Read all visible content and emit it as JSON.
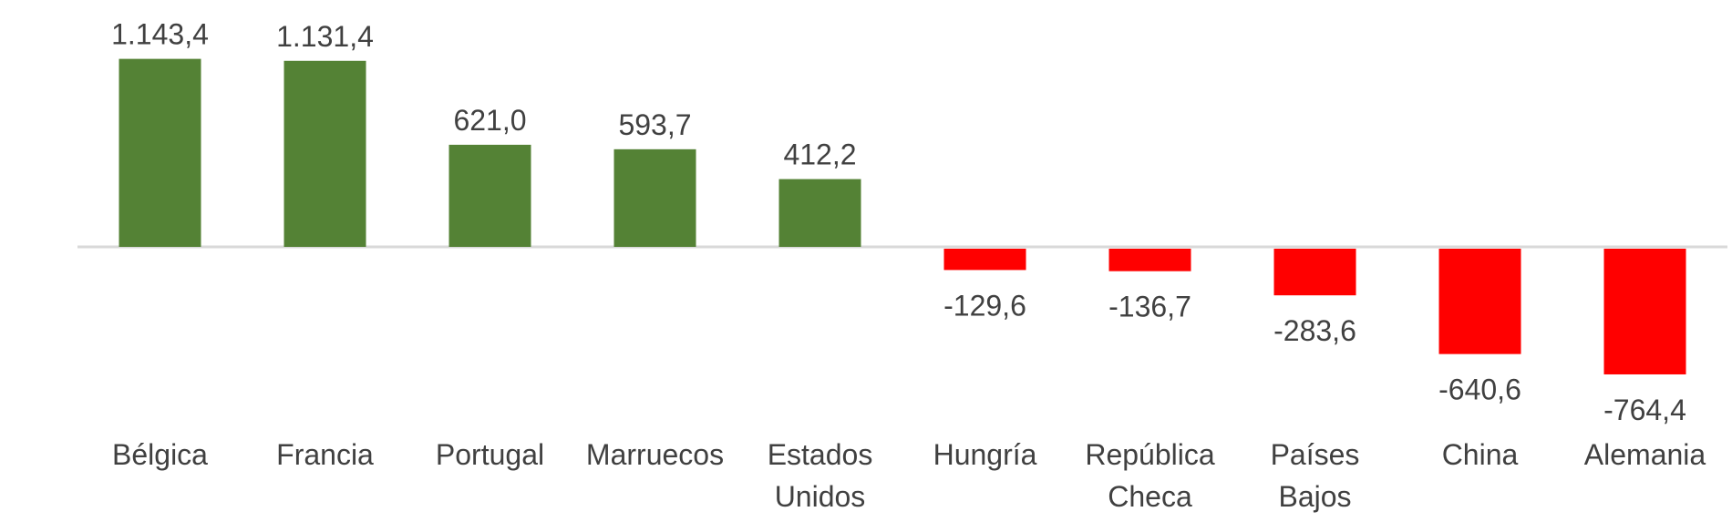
{
  "chart_data": {
    "type": "bar",
    "title": "",
    "xlabel": "",
    "ylabel": "",
    "categories": [
      [
        "Bélgica"
      ],
      [
        "Francia"
      ],
      [
        "Portugal"
      ],
      [
        "Marruecos"
      ],
      [
        "Estados",
        "Unidos"
      ],
      [
        "Hungría"
      ],
      [
        "República",
        "Checa"
      ],
      [
        "Países",
        "Bajos"
      ],
      [
        "China"
      ],
      [
        "Alemania"
      ]
    ],
    "values": [
      1143.4,
      1131.4,
      621.0,
      593.7,
      412.2,
      -129.6,
      -136.7,
      -283.6,
      -640.6,
      -764.4
    ],
    "value_labels": [
      "1.143,4",
      "1.131,4",
      "621,0",
      "593,7",
      "412,2",
      "-129,6",
      "-136,7",
      "-283,6",
      "-640,6",
      "-764,4"
    ],
    "positive_color": "#548235",
    "negative_color": "#ff0000",
    "axis_color": "#d9d9d9",
    "grid": false,
    "legend": false
  }
}
